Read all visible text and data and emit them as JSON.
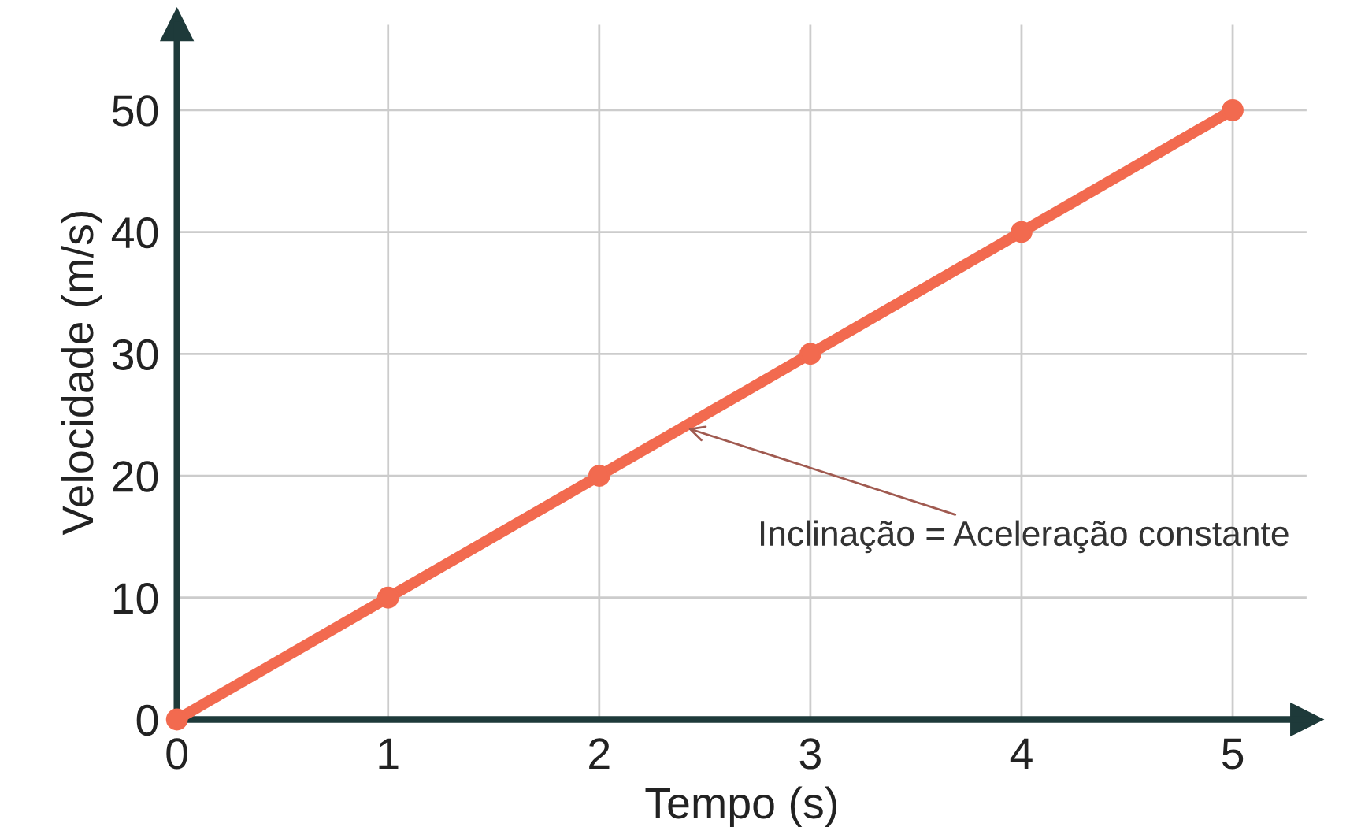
{
  "chart_data": {
    "type": "line",
    "xlabel": "Tempo (s)",
    "ylabel": "Velocidade (m/s)",
    "x": [
      0,
      1,
      2,
      3,
      4,
      5
    ],
    "series": [
      {
        "color": "#f26a4f",
        "values": [
          0,
          10,
          20,
          30,
          40,
          50
        ]
      }
    ],
    "xlim": [
      0,
      5.35
    ],
    "ylim": [
      0,
      57
    ],
    "xticks": [
      0,
      1,
      2,
      3,
      4,
      5
    ],
    "yticks": [
      0,
      10,
      20,
      30,
      40,
      50
    ],
    "grid": true,
    "marker": "circle",
    "line_style": "solid",
    "annotations": [
      {
        "text": "Inclinação = Aceleração constante",
        "x": 2.4,
        "y": 24
      }
    ]
  }
}
